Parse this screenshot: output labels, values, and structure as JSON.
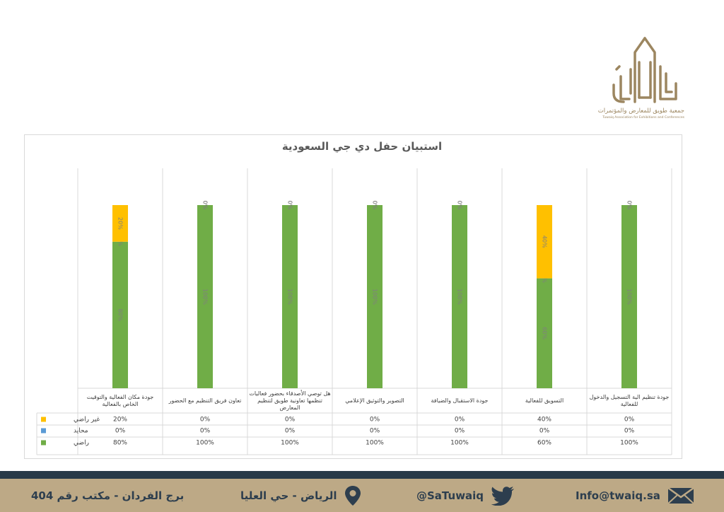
{
  "logo": {
    "arabic": "جمعية طويق للمعارض والمؤتمرات",
    "english": "Tuwaiq Association for Exhibitions and Conferences"
  },
  "chart_data": {
    "type": "bar",
    "stacked": true,
    "stacked_percent": true,
    "title": "استبيان حفل دي جي السعودية",
    "categories": [
      "جودة مكان الفعالية والتوقيت الخاص بالفعالية",
      "تعاون فريق التنظيم مع الحضور",
      "هل توصي الأصدقاء بحضور فعاليات تنظمها تعاونية طويق لتنظيم المعارض",
      "التصوير والتوثيق الإعلامي",
      "جودة الاستقبال والضيافة",
      "التسويق للفعالية",
      "جودة تنظيم الية التسجيل والدخول للفعالية"
    ],
    "series": [
      {
        "name": "غير راضي",
        "color": "#ffc000",
        "values": [
          20,
          0,
          0,
          0,
          0,
          40,
          0
        ],
        "labels": [
          "20%",
          "0%",
          "0%",
          "0%",
          "0%",
          "40%",
          "0%"
        ]
      },
      {
        "name": "محايد",
        "color": "#5b9bd5",
        "values": [
          0,
          0,
          0,
          0,
          0,
          0,
          0
        ],
        "labels": [
          "0%",
          "0%",
          "0%",
          "0%",
          "0%",
          "0%",
          "0%"
        ]
      },
      {
        "name": "راضي",
        "color": "#70ad47",
        "values": [
          80,
          100,
          100,
          100,
          100,
          60,
          100
        ],
        "labels": [
          "80%",
          "100%",
          "100%",
          "100%",
          "100%",
          "60%",
          "100%"
        ]
      }
    ],
    "ylim": [
      0,
      100
    ],
    "grid": "vertical",
    "legend": "data-table"
  },
  "footer": {
    "email": "Info@twaiq.sa",
    "twitter": "@SaTuwaiq",
    "location": "الرياض - حي العليا",
    "office": "برج الفردان - مكتب رقم 404",
    "email_icon": "envelope-icon",
    "twitter_icon": "twitter-bird-icon",
    "location_icon": "map-pin-icon"
  }
}
